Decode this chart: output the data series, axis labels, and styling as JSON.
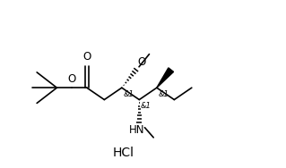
{
  "figsize": [
    3.19,
    1.88
  ],
  "dpi": 100,
  "bg_color": "#ffffff",
  "line_color": "#000000",
  "lw": 1.2,
  "xlim": [
    0,
    10
  ],
  "ylim": [
    -3.2,
    3.5
  ],
  "hcl_x": 4.2,
  "hcl_y": -2.6,
  "hcl_fontsize": 10
}
